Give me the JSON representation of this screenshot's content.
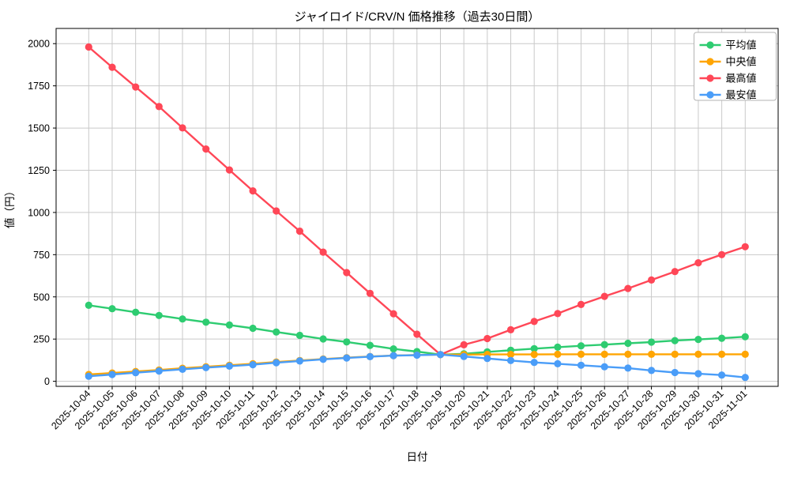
{
  "chart_data": {
    "type": "line",
    "title": "ジャイロイド/CRV/N 価格推移（過去30日間）",
    "xlabel": "日付",
    "ylabel": "値（円）",
    "x": [
      "2025-10-04",
      "2025-10-05",
      "2025-10-06",
      "2025-10-07",
      "2025-10-08",
      "2025-10-09",
      "2025-10-10",
      "2025-10-11",
      "2025-10-12",
      "2025-10-13",
      "2025-10-14",
      "2025-10-15",
      "2025-10-16",
      "2025-10-17",
      "2025-10-18",
      "2025-10-19",
      "2025-10-20",
      "2025-10-21",
      "2025-10-22",
      "2025-10-23",
      "2025-10-24",
      "2025-10-25",
      "2025-10-26",
      "2025-10-27",
      "2025-10-28",
      "2025-10-29",
      "2025-10-30",
      "2025-10-31",
      "2025-11-01"
    ],
    "series": [
      {
        "id": "average",
        "label": "平均値",
        "color": "#2ecc71",
        "values": [
          450,
          430,
          409,
          390,
          369,
          350,
          333,
          314,
          292,
          272,
          251,
          233,
          213,
          192,
          176,
          158,
          163,
          174,
          184,
          193,
          202,
          210,
          217,
          225,
          232,
          241,
          248,
          255,
          264
        ]
      },
      {
        "id": "median",
        "label": "中央値",
        "color": "#ffa502",
        "values": [
          40,
          49,
          58,
          67,
          77,
          86,
          95,
          104,
          114,
          123,
          132,
          140,
          147,
          152,
          156,
          158,
          158,
          159,
          159,
          159,
          160,
          160,
          160,
          160,
          160,
          160,
          160,
          160,
          160
        ]
      },
      {
        "id": "max",
        "label": "最高値",
        "color": "#ff4757",
        "values": [
          1980,
          1860,
          1743,
          1627,
          1501,
          1376,
          1252,
          1128,
          1009,
          889,
          765,
          644,
          521,
          400,
          279,
          158,
          216,
          253,
          305,
          354,
          401,
          455,
          503,
          550,
          600,
          650,
          702,
          750,
          797
        ]
      },
      {
        "id": "min",
        "label": "最安値",
        "color": "#4a9df8",
        "values": [
          30,
          40,
          51,
          61,
          71,
          81,
          90,
          98,
          110,
          120,
          130,
          138,
          146,
          152,
          155,
          158,
          147,
          135,
          123,
          112,
          104,
          95,
          86,
          78,
          64,
          52,
          45,
          37,
          23
        ]
      }
    ],
    "yticks": [
      0,
      250,
      500,
      750,
      1000,
      1250,
      1500,
      1750,
      2000
    ],
    "ylim": [
      -30,
      2090
    ],
    "grid": true,
    "legend_position": "upper-right",
    "colors": {
      "grid": "#c9c9c9",
      "spine": "#000000",
      "text": "#000000",
      "legend_border": "#b3b3b3",
      "legend_bg": "#ffffff"
    }
  }
}
